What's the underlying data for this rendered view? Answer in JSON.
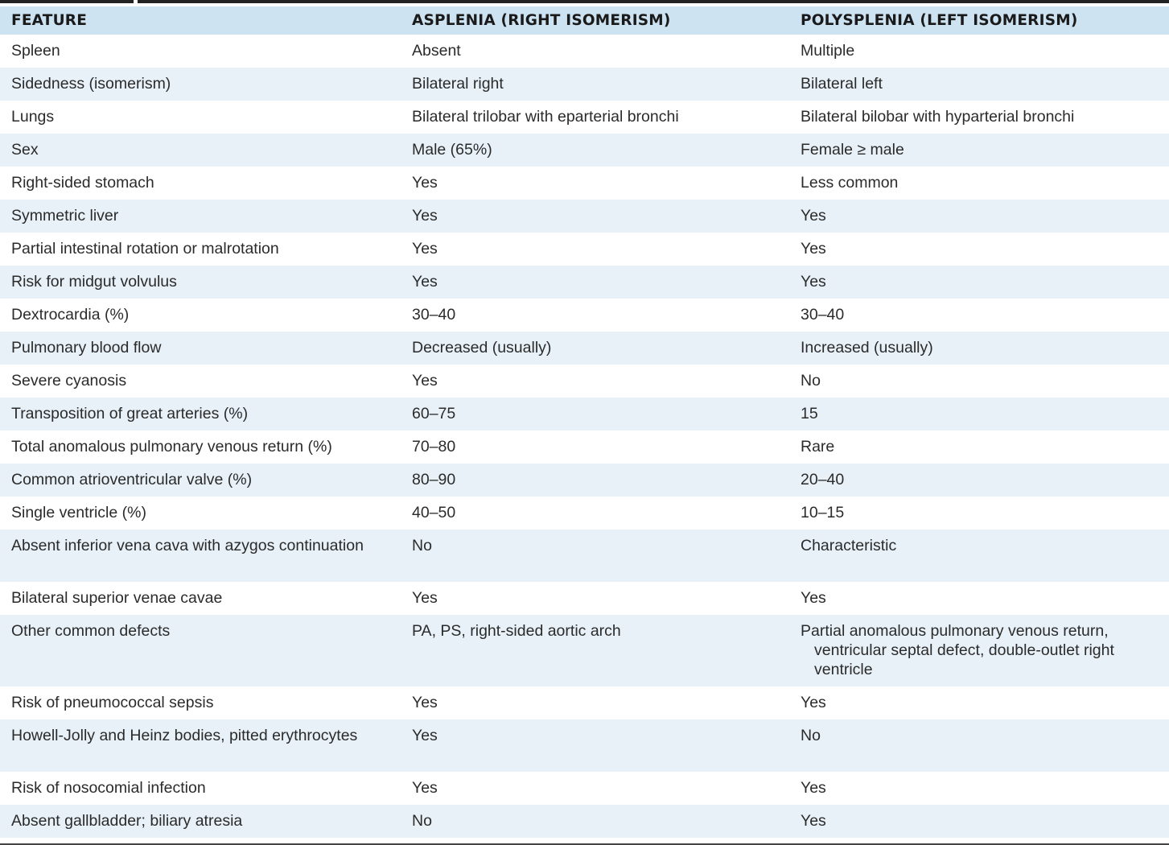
{
  "table": {
    "headers": [
      "FEATURE",
      "ASPLENIA (RIGHT ISOMERISM)",
      "POLYSPLENIA (LEFT ISOMERISM)"
    ],
    "rows": [
      [
        "Spleen",
        "Absent",
        "Multiple"
      ],
      [
        "Sidedness (isomerism)",
        "Bilateral right",
        "Bilateral left"
      ],
      [
        "Lungs",
        "Bilateral trilobar with eparterial bronchi",
        "Bilateral bilobar with hyparterial bronchi"
      ],
      [
        "Sex",
        "Male (65%)",
        "Female ≥ male"
      ],
      [
        "Right-sided stomach",
        "Yes",
        "Less common"
      ],
      [
        "Symmetric liver",
        "Yes",
        "Yes"
      ],
      [
        "Partial intestinal rotation or malrotation",
        "Yes",
        "Yes"
      ],
      [
        "Risk for midgut volvulus",
        "Yes",
        "Yes"
      ],
      [
        "Dextrocardia (%)",
        "30–40",
        "30–40"
      ],
      [
        "Pulmonary blood flow",
        "Decreased (usually)",
        "Increased (usually)"
      ],
      [
        "Severe cyanosis",
        "Yes",
        "No"
      ],
      [
        "Transposition of great arteries (%)",
        "60–75",
        "15"
      ],
      [
        "Total anomalous pulmonary venous return (%)",
        "70–80",
        "Rare"
      ],
      [
        "Common atrioventricular valve (%)",
        "80–90",
        "20–40"
      ],
      [
        "Single ventricle (%)",
        "40–50",
        "10–15"
      ],
      [
        "Absent inferior vena cava with azygos continuation",
        "No",
        "Characteristic"
      ],
      [
        "Bilateral superior venae cavae",
        "Yes",
        "Yes"
      ],
      [
        "Other common defects",
        "PA, PS, right-sided aortic arch",
        "Partial anomalous pulmonary venous return, ventricular septal defect, double-outlet right ventricle"
      ],
      [
        "Risk of pneumococcal sepsis",
        "Yes",
        "Yes"
      ],
      [
        "Howell-Jolly and Heinz bodies, pitted erythrocytes",
        "Yes",
        "No"
      ],
      [
        "Risk of nosocomial infection",
        "Yes",
        "Yes"
      ],
      [
        "Absent gallbladder; biliary atresia",
        "No",
        "Yes"
      ]
    ]
  },
  "colors": {
    "header_bg": "#cde3f2",
    "stripe_bg": "#e8f1f8"
  }
}
